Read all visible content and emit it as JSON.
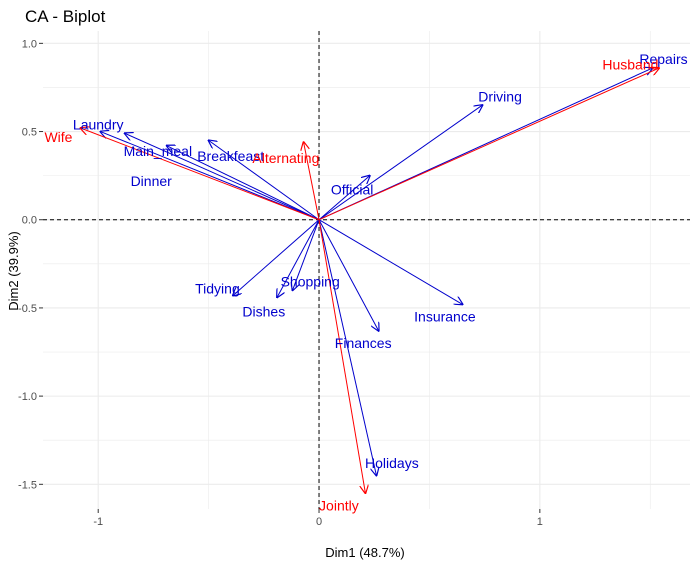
{
  "chart_data": {
    "type": "scatter",
    "title": "CA - Biplot",
    "xlabel": "Dim1 (48.7%)",
    "ylabel": "Dim2 (39.9%)",
    "xlim": [
      -1.25,
      1.68
    ],
    "ylim": [
      -1.64,
      1.07
    ],
    "x_ticks": [
      -1,
      0,
      1
    ],
    "x_tick_labels": [
      "-1",
      "0",
      "1"
    ],
    "y_ticks": [
      -1.5,
      -1.0,
      -0.5,
      0.0,
      0.5,
      1.0
    ],
    "y_tick_labels": [
      "-1.5",
      "-1.0",
      "-0.5",
      "0.0",
      "0.5",
      "1.0"
    ],
    "grid": true,
    "reference_lines": {
      "x": 0,
      "y": 0,
      "style": "dashed"
    },
    "colors": {
      "rows": "#0000cc",
      "columns": "#ff0000"
    },
    "series": [
      {
        "group": "rows",
        "color": "#0000cc",
        "points": [
          {
            "label": "Laundry",
            "x": -0.99,
            "y": 0.5,
            "label_x": -1.0,
            "label_y": 0.54
          },
          {
            "label": "Main_meal",
            "x": -0.88,
            "y": 0.49,
            "label_x": -0.73,
            "label_y": 0.39
          },
          {
            "label": "Dinner",
            "x": -0.69,
            "y": 0.42,
            "label_x": -0.76,
            "label_y": 0.22
          },
          {
            "label": "Breakfeast",
            "x": -0.5,
            "y": 0.45,
            "label_x": -0.4,
            "label_y": 0.36
          },
          {
            "label": "Tidying",
            "x": -0.39,
            "y": -0.43,
            "label_x": -0.46,
            "label_y": -0.39
          },
          {
            "label": "Dishes",
            "x": -0.19,
            "y": -0.44,
            "label_x": -0.25,
            "label_y": -0.52
          },
          {
            "label": "Shopping",
            "x": -0.12,
            "y": -0.4,
            "label_x": -0.04,
            "label_y": -0.35
          },
          {
            "label": "Official",
            "x": 0.23,
            "y": 0.25,
            "label_x": 0.15,
            "label_y": 0.17
          },
          {
            "label": "Driving",
            "x": 0.74,
            "y": 0.65,
            "label_x": 0.82,
            "label_y": 0.7
          },
          {
            "label": "Finances",
            "x": 0.27,
            "y": -0.63,
            "label_x": 0.2,
            "label_y": -0.7
          },
          {
            "label": "Insurance",
            "x": 0.65,
            "y": -0.48,
            "label_x": 0.57,
            "label_y": -0.55
          },
          {
            "label": "Repairs",
            "x": 1.51,
            "y": 0.86,
            "label_x": 1.56,
            "label_y": 0.91
          },
          {
            "label": "Holidays",
            "x": 0.26,
            "y": -1.45,
            "label_x": 0.33,
            "label_y": -1.38
          }
        ]
      },
      {
        "group": "columns",
        "color": "#ff0000",
        "points": [
          {
            "label": "Wife",
            "x": -1.08,
            "y": 0.52,
            "label_x": -1.18,
            "label_y": 0.47
          },
          {
            "label": "Alternating",
            "x": -0.07,
            "y": 0.44,
            "label_x": -0.15,
            "label_y": 0.35
          },
          {
            "label": "Husband",
            "x": 1.54,
            "y": 0.86,
            "label_x": 1.41,
            "label_y": 0.88
          },
          {
            "label": "Jointly",
            "x": 0.21,
            "y": -1.55,
            "label_x": 0.09,
            "label_y": -1.62
          }
        ]
      }
    ]
  }
}
